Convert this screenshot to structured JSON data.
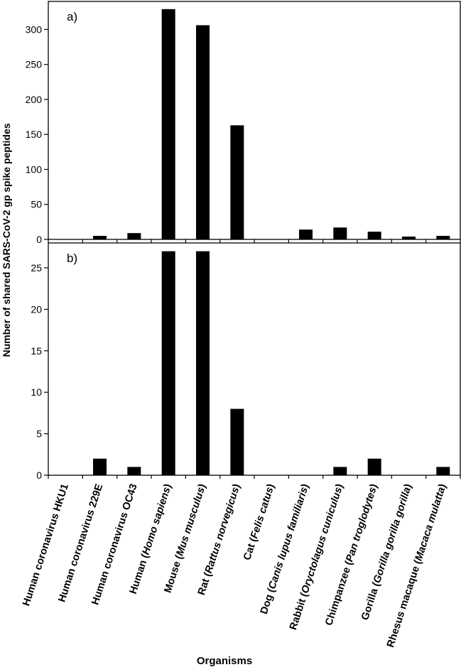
{
  "chart_data": {
    "type": "bar",
    "ylabel": "Number of shared SARS-CoV-2 gp spike peptides",
    "xlabel": "Organisms",
    "categories": [
      {
        "label": "Human coronavirus HKU1",
        "plain": "Human coronavirus HKU1",
        "italic": "",
        "close": ""
      },
      {
        "label": "Human coronavirus 229E",
        "plain": "Human coronavirus 229E",
        "italic": "",
        "close": ""
      },
      {
        "label": "Human coronavirus OC43",
        "plain": "Human coronavirus OC43",
        "italic": "",
        "close": ""
      },
      {
        "label": "Human (Homo sapiens)",
        "plain": "Human (",
        "italic": "Homo sapiens",
        "close": ")"
      },
      {
        "label": "Mouse (Mus musculus)",
        "plain": "Mouse (",
        "italic": "Mus musculus",
        "close": ")"
      },
      {
        "label": "Rat (Rattus norvegicus)",
        "plain": "Rat  (",
        "italic": "Rattus norvegicus",
        "close": ")"
      },
      {
        "label": "Cat (Felis catus)",
        "plain": "Cat (",
        "italic": "Felis catus",
        "close": ")"
      },
      {
        "label": "Dog (Canis lupus familiaris)",
        "plain": "Dog (",
        "italic": "Canis lupus familiaris",
        "close": ")"
      },
      {
        "label": "Rabbit (Oryctolagus cuniculus)",
        "plain": "Rabbit (",
        "italic": "Oryctolagus cuniculus",
        "close": ")"
      },
      {
        "label": "Chimpanzee (Pan troglodytes)",
        "plain": "Chimpanzee (",
        "italic": "Pan troglodytes",
        "close": ")"
      },
      {
        "label": "Gorilla (Gorilla gorilla gorilla)",
        "plain": "Gorilla (",
        "italic": "Gorilla gorilla gorilla",
        "close": ")"
      },
      {
        "label": "Rhesus macaque (Macaca mulatta)",
        "plain": "Rhesus macaque (",
        "italic": "Macaca mulatta",
        "close": ")"
      }
    ],
    "panels": [
      {
        "label": "a)",
        "ylim": [
          0,
          340
        ],
        "yticks": [
          0,
          50,
          100,
          150,
          200,
          250,
          300
        ],
        "values": [
          0,
          5,
          9,
          329,
          306,
          163,
          0,
          14,
          17,
          11,
          4,
          5
        ]
      },
      {
        "label": "b)",
        "ylim": [
          0,
          28
        ],
        "yticks": [
          0,
          5,
          10,
          15,
          20,
          25
        ],
        "values": [
          0,
          2,
          1,
          27,
          27,
          8,
          0,
          0,
          1,
          2,
          0,
          1
        ]
      }
    ],
    "colors": {
      "bar": "#000000",
      "axis": "#000000",
      "background": "#ffffff"
    }
  }
}
